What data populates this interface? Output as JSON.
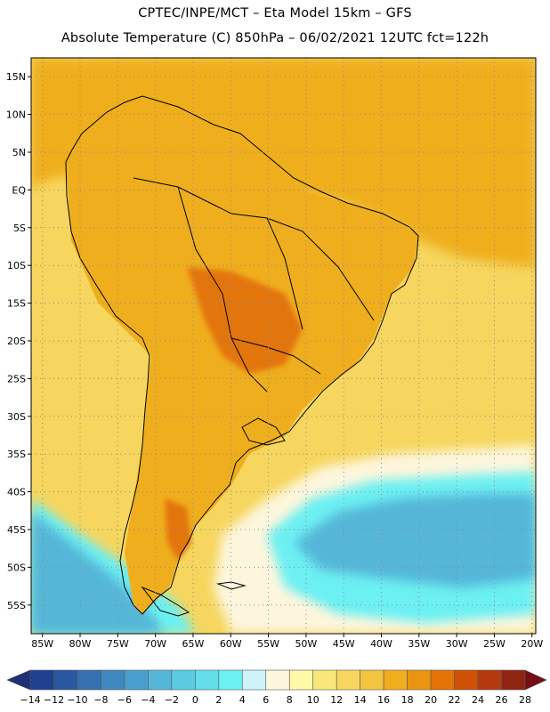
{
  "header": {
    "line1": "CPTEC/INPE/MCT –  Eta Model 15km – GFS",
    "line2": "Absolute Temperature (C) 850hPa – 06/02/2021 12UTC fct=122h"
  },
  "map": {
    "region": "South America",
    "lat_labels": [
      "15N",
      "10N",
      "5N",
      "EQ",
      "5S",
      "10S",
      "15S",
      "20S",
      "25S",
      "30S",
      "35S",
      "40S",
      "45S",
      "50S",
      "55S"
    ],
    "lat_values": [
      15,
      10,
      5,
      0,
      -5,
      -10,
      -15,
      -20,
      -25,
      -30,
      -35,
      -40,
      -45,
      -50,
      -55
    ],
    "lon_labels": [
      "85W",
      "80W",
      "75W",
      "70W",
      "65W",
      "60W",
      "55W",
      "50W",
      "45W",
      "40W",
      "35W",
      "30W",
      "25W",
      "20W"
    ],
    "lon_values": [
      -85,
      -80,
      -75,
      -70,
      -65,
      -60,
      -55,
      -50,
      -45,
      -40,
      -35,
      -30,
      -25,
      -20
    ],
    "lon_range": [
      -86.5,
      -19.5
    ],
    "lat_range": [
      -58.8,
      17.5
    ]
  },
  "colorbar": {
    "unit": "C",
    "labels": [
      "-14",
      "-12",
      "-10",
      "-8",
      "-6",
      "-4",
      "-2",
      "0",
      "2",
      "4",
      "6",
      "8",
      "10",
      "12",
      "14",
      "16",
      "18",
      "20",
      "22",
      "24",
      "26",
      "28"
    ],
    "bins": [
      "#1f3f8f",
      "#2a58a0",
      "#3571b0",
      "#3f89c0",
      "#4aa0cc",
      "#55b6d8",
      "#5ccbe2",
      "#62dde9",
      "#6cf0f2",
      "#cff3f8",
      "#fdf6dd",
      "#fef9a8",
      "#f9e77c",
      "#f6d65e",
      "#f2c440",
      "#efae1e",
      "#ea9410",
      "#e37408",
      "#cf5006",
      "#b33a0e",
      "#8e2412"
    ],
    "under_color": "#1f2f78",
    "over_color": "#760f18"
  },
  "colors": {
    "ocean_warm": "#f6d65e",
    "land_warm": "#efae1e",
    "tropical_ocean": "#efae1e",
    "hot_core": "#e37408",
    "cold_ocean": "#55b6d8",
    "cool_ocean": "#6cf0f2",
    "coast": "#000000"
  }
}
